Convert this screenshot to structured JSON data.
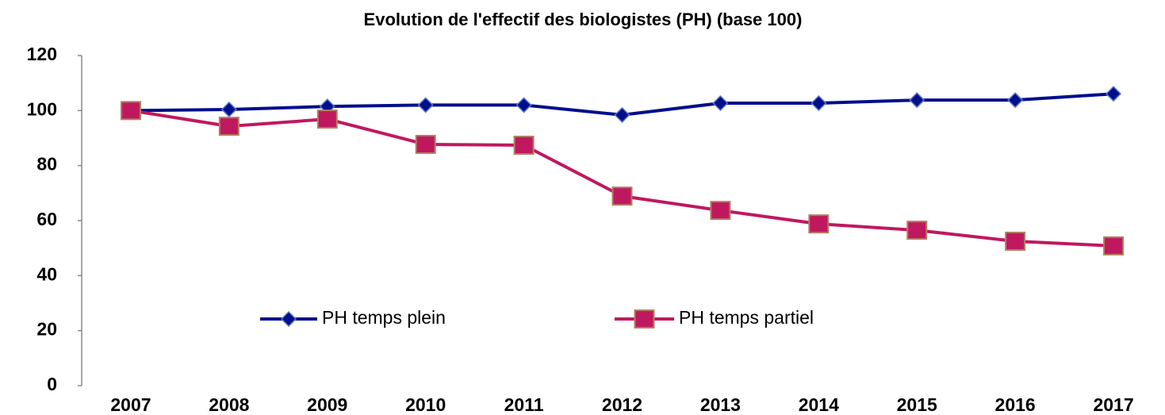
{
  "chart_data": {
    "type": "line",
    "title": "Evolution de l'effectif des biologistes (PH)  (base 100)",
    "categories": [
      "2007",
      "2008",
      "2009",
      "2010",
      "2011",
      "2012",
      "2013",
      "2014",
      "2015",
      "2016",
      "2017"
    ],
    "series": [
      {
        "name": "PH temps plein",
        "color": "#000e8c",
        "marker": "diamond",
        "values": [
          100,
          100.4,
          101.5,
          102,
          102,
          98.4,
          102.7,
          102.7,
          103.8,
          103.8,
          106.1
        ]
      },
      {
        "name": "PH temps partiel",
        "color": "#c0185f",
        "marker": "square",
        "values": [
          100,
          94.3,
          96.9,
          87.7,
          87.4,
          68.9,
          63.7,
          58.8,
          56.5,
          52.5,
          50.8
        ]
      }
    ],
    "ylim": [
      0,
      120
    ],
    "yticks": [
      0,
      20,
      40,
      60,
      80,
      100,
      120
    ],
    "grid": false,
    "legend": "inside"
  }
}
